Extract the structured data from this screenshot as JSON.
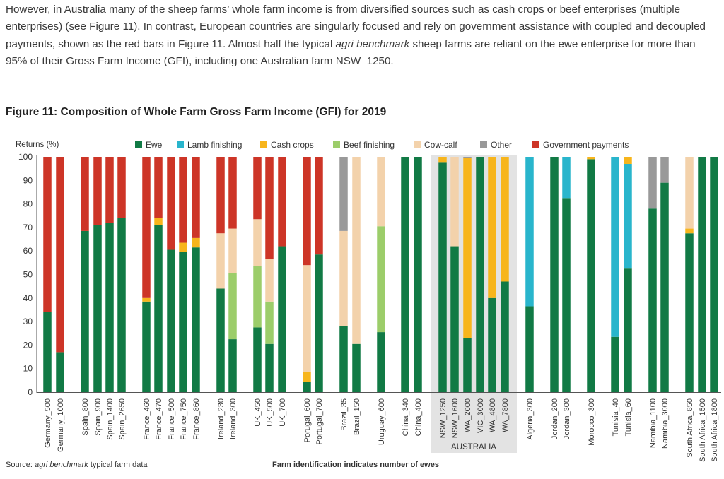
{
  "paragraph": {
    "part1": "However, in Australia many of the sheep farms’ whole farm income is from diversified sources such as cash crops or beef enterprises (multiple enterprises) (see Figure 11). In contrast, European countries are singularly focused and rely on government assistance with coupled and decoupled payments, shown as the red bars in Figure 11. Almost half the typical ",
    "emphasis": "agri benchmark",
    "part2": " sheep farms are reliant on the ewe enterprise for more than 95% of their Gross Farm Income (GFI), including one Australian farm NSW_1250."
  },
  "figure_title": "Figure 11:  Composition of Whole Farm Gross Farm Income (GFI) for 2019",
  "source": {
    "prefix": "Source: ",
    "emphasis": "agri benchmark",
    "suffix": " typical farm data"
  },
  "footnote": "Farm identification indicates number of ewes",
  "colors": {
    "Ewe": "#117a45",
    "Lamb finishing": "#29b5cc",
    "Cash crops": "#f7b51c",
    "Beef finishing": "#9ccd6a",
    "Cow-calf": "#f3d2ab",
    "Other": "#999999",
    "Government payments": "#cd3527",
    "highlight": "#e3e3e3"
  },
  "chart_data": {
    "type": "bar",
    "stacked": true,
    "ylabel": "Returns (%)",
    "ylim": [
      0,
      100
    ],
    "yticks": [
      0,
      10,
      20,
      30,
      40,
      50,
      60,
      70,
      80,
      90,
      100
    ],
    "grid": false,
    "legend": "top",
    "highlight_group": "AUSTRALIA",
    "series_names": [
      "Ewe",
      "Lamb finishing",
      "Cash crops",
      "Beef finishing",
      "Cow-calf",
      "Other",
      "Government payments"
    ],
    "categories": [
      "Germany_500",
      "Germany_1000",
      "Spain_800",
      "Spain_900",
      "Spain_1400",
      "Spain_2650",
      "France_460",
      "France_470",
      "France_500",
      "France_750",
      "France_860",
      "Ireland_230",
      "Ireland_300",
      "UK_450",
      "UK_500",
      "UK_700",
      "Porugal_600",
      "Portugal_700",
      "Brazil_35",
      "Brazil_150",
      "Uruguay_600",
      "China_340",
      "China_400",
      "NSW_1250",
      "NSW_1600",
      "WA_2000",
      "VIC_3000",
      "WA_4800",
      "WA_7800",
      "Algeria_300",
      "Jordan_200",
      "Jordan_300",
      "Morocco_300",
      "Tunisia_40",
      "Tunisia_60",
      "Namibia_1100",
      "Namibia_3000",
      "South Africa_850",
      "South Africa_1500",
      "South Africa_1800"
    ],
    "values": [
      [
        34,
        0,
        0,
        0,
        0,
        0,
        66
      ],
      [
        17,
        0,
        0,
        0,
        0,
        0,
        83
      ],
      [
        68.5,
        0,
        0,
        0,
        0,
        0,
        31.5
      ],
      [
        71,
        0,
        0,
        0,
        0,
        0,
        29
      ],
      [
        72,
        0,
        0,
        0,
        0,
        0,
        28
      ],
      [
        74,
        0,
        0,
        0,
        0,
        0,
        26
      ],
      [
        38.5,
        0,
        1.5,
        0,
        0,
        0,
        60
      ],
      [
        71,
        0,
        3,
        0,
        0,
        0,
        26
      ],
      [
        60.5,
        0,
        0,
        0,
        0,
        0,
        39.5
      ],
      [
        59.5,
        0,
        4,
        0,
        0,
        0,
        36.5
      ],
      [
        61.5,
        0,
        4,
        0,
        0,
        0,
        34.5
      ],
      [
        44,
        0,
        0,
        0,
        23.5,
        0,
        32.5
      ],
      [
        22.5,
        0,
        0,
        28,
        19,
        0,
        30.5
      ],
      [
        27.5,
        0,
        0,
        26,
        20,
        0,
        26.5
      ],
      [
        20.5,
        0,
        0,
        18,
        18,
        0,
        43.5
      ],
      [
        62,
        0,
        0,
        0,
        0,
        0,
        38
      ],
      [
        4.5,
        0,
        4,
        0,
        45.5,
        0,
        46
      ],
      [
        58.5,
        0,
        0,
        0,
        0,
        0,
        41.5
      ],
      [
        28,
        0,
        0,
        0,
        40.5,
        31.5,
        0
      ],
      [
        20.5,
        0,
        0,
        0,
        79.5,
        0,
        0
      ],
      [
        25.5,
        0,
        0,
        45,
        29.5,
        0,
        0
      ],
      [
        100,
        0,
        0,
        0,
        0,
        0,
        0
      ],
      [
        100,
        0,
        0,
        0,
        0,
        0,
        0
      ],
      [
        97.5,
        0,
        2.5,
        0,
        0,
        0,
        0
      ],
      [
        62,
        0,
        0,
        0,
        38,
        0,
        0
      ],
      [
        23,
        0,
        76.5,
        0,
        0,
        0.5,
        0
      ],
      [
        100,
        0,
        0,
        0,
        0,
        0,
        0
      ],
      [
        40,
        0,
        60,
        0,
        0,
        0,
        0
      ],
      [
        47,
        0,
        53,
        0,
        0,
        0,
        0
      ],
      [
        36.5,
        63.5,
        0,
        0,
        0,
        0,
        0
      ],
      [
        100,
        0,
        0,
        0,
        0,
        0,
        0
      ],
      [
        82.5,
        17.5,
        0,
        0,
        0,
        0,
        0
      ],
      [
        99,
        0,
        1,
        0,
        0,
        0,
        0
      ],
      [
        23.5,
        76.5,
        0,
        0,
        0,
        0,
        0
      ],
      [
        52.5,
        44.5,
        3,
        0,
        0,
        0,
        0
      ],
      [
        78,
        0,
        0,
        0,
        0,
        22,
        0
      ],
      [
        89,
        0,
        0,
        0,
        0,
        11,
        0
      ],
      [
        67.5,
        0,
        2,
        0,
        30.5,
        0,
        0
      ],
      [
        100,
        0,
        0,
        0,
        0,
        0,
        0
      ],
      [
        100,
        0,
        0,
        0,
        0,
        0,
        0
      ]
    ]
  }
}
